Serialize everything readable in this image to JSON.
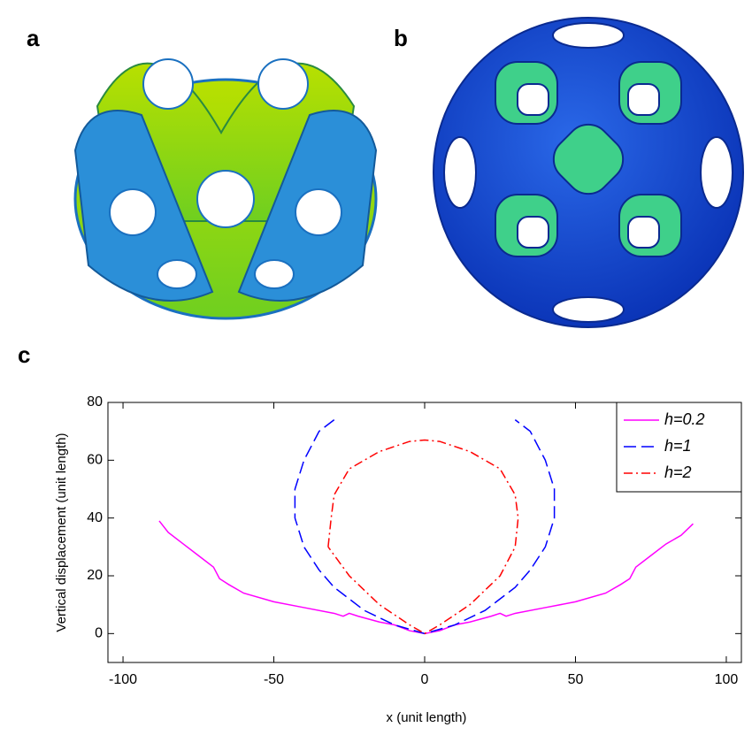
{
  "panel_labels": [
    "a",
    "b",
    "c"
  ],
  "chart_data": {
    "type": "line",
    "xlabel": "x (unit length)",
    "ylabel": "Vertical displacement (unit length)",
    "xlim": [
      -105,
      105
    ],
    "ylim": [
      -10,
      80
    ],
    "xticks": [
      -100,
      -50,
      0,
      50,
      100
    ],
    "yticks": [
      0,
      20,
      40,
      60,
      80
    ],
    "grid": false,
    "legend": "upper right",
    "series": [
      {
        "name": "h=0.2",
        "color": "#ff00ff",
        "dash": "solid",
        "x": [
          -88,
          -85,
          -80,
          -75,
          -70,
          -68,
          -65,
          -60,
          -50,
          -40,
          -30,
          -27,
          -25,
          -22,
          -15,
          -10,
          -5,
          0,
          5,
          10,
          15,
          22,
          25,
          27,
          30,
          40,
          50,
          60,
          65,
          68,
          70,
          75,
          80,
          85,
          89
        ],
        "values": [
          39,
          35,
          31,
          27,
          23,
          19,
          17,
          14,
          11,
          9,
          7,
          6,
          7,
          6,
          4,
          3,
          1,
          0,
          1,
          3,
          4,
          6,
          7,
          6,
          7,
          9,
          11,
          14,
          17,
          19,
          23,
          27,
          31,
          34,
          38
        ]
      },
      {
        "name": "h=1",
        "color": "#0000ff",
        "dash": "dashed",
        "x": [
          -30,
          -35,
          -40,
          -43,
          -43,
          -40,
          -35,
          -30,
          -20,
          -10,
          0,
          10,
          20,
          30,
          35,
          40,
          43,
          43,
          40,
          35,
          30
        ],
        "values": [
          74,
          70,
          60,
          50,
          40,
          30,
          22,
          16,
          8,
          3,
          0,
          3,
          8,
          16,
          22,
          30,
          40,
          50,
          60,
          70,
          74
        ]
      },
      {
        "name": "h=2",
        "color": "#ff0000",
        "dash": "dashdot",
        "x": [
          -32,
          -31,
          -30,
          -25,
          -15,
          -5,
          0,
          5,
          15,
          25,
          30,
          31,
          30,
          25,
          15,
          5,
          0,
          -5,
          -15,
          -25,
          -32
        ],
        "values": [
          30,
          40,
          48,
          57,
          63,
          66.5,
          67,
          66.5,
          63,
          57,
          48,
          40,
          30,
          20,
          10,
          3,
          0,
          3,
          10,
          20,
          30
        ]
      }
    ]
  }
}
